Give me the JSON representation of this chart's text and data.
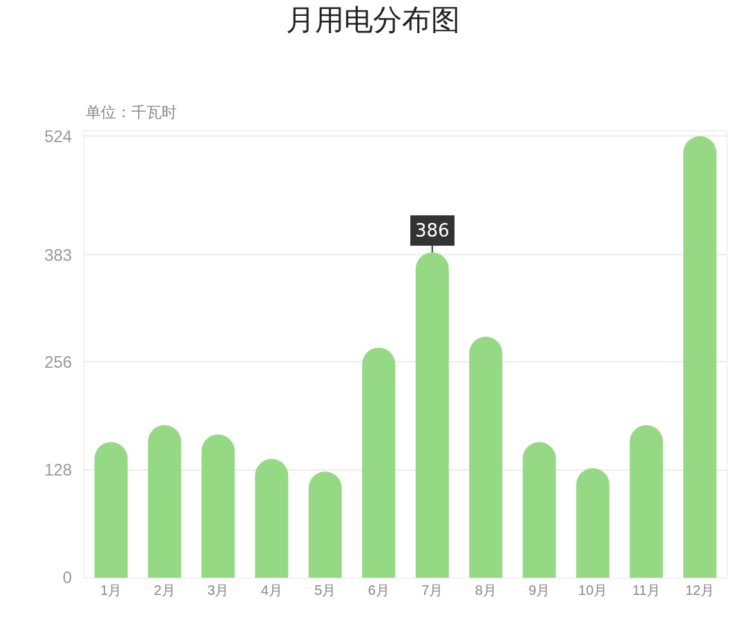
{
  "chart_data": {
    "type": "bar",
    "title": "月用电分布图",
    "ylabel": "单位：千瓦时",
    "categories": [
      "1月",
      "2月",
      "3月",
      "4月",
      "5月",
      "6月",
      "7月",
      "8月",
      "9月",
      "10月",
      "11月",
      "12月"
    ],
    "values": [
      161,
      181,
      170,
      141,
      126,
      273,
      386,
      286,
      161,
      130,
      181,
      524
    ],
    "value_labels": [
      null,
      null,
      null,
      null,
      null,
      null,
      "386",
      null,
      null,
      null,
      null,
      null
    ],
    "color": "#95d984",
    "ylim": [
      0,
      530
    ],
    "yticks": [
      0,
      128,
      256,
      383,
      524
    ],
    "grid": "y",
    "legend": false
  }
}
